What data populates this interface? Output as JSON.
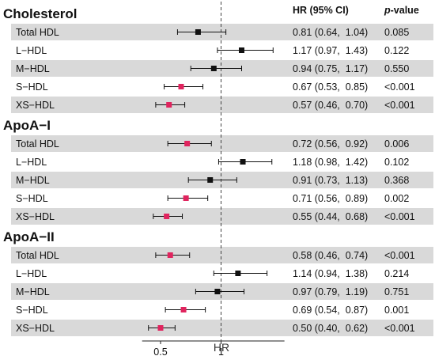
{
  "chart_data": {
    "type": "forest",
    "header": {
      "hr_label": "HR (95% CI)",
      "p_italic": "p",
      "p_rest": "-value"
    },
    "xlabel": "HR",
    "x_ticks": [
      "0.5",
      "1"
    ],
    "x_tick_values": [
      0.5,
      1
    ],
    "xlim": [
      0.4,
      1.55
    ],
    "reference_line": 1,
    "significant_color": "#e0245e",
    "nonsignificant_color": "#111111",
    "row_shade_color": "#d9d9d9",
    "groups": [
      {
        "title": "Cholesterol",
        "rows": [
          {
            "label": "Total HDL",
            "hr": 0.81,
            "lo": 0.64,
            "hi": 1.04,
            "ci_text": "0.81 (0.64,  1.04)",
            "p": "0.085",
            "significant": false
          },
          {
            "label": "L−HDL",
            "hr": 1.17,
            "lo": 0.97,
            "hi": 1.43,
            "ci_text": "1.17 (0.97,  1.43)",
            "p": "0.122",
            "significant": false
          },
          {
            "label": "M−HDL",
            "hr": 0.94,
            "lo": 0.75,
            "hi": 1.17,
            "ci_text": "0.94 (0.75,  1.17)",
            "p": "0.550",
            "significant": false
          },
          {
            "label": "S−HDL",
            "hr": 0.67,
            "lo": 0.53,
            "hi": 0.85,
            "ci_text": "0.67 (0.53,  0.85)",
            "p": "<0.001",
            "significant": true
          },
          {
            "label": "XS−HDL",
            "hr": 0.57,
            "lo": 0.46,
            "hi": 0.7,
            "ci_text": "0.57 (0.46,  0.70)",
            "p": "<0.001",
            "significant": true
          }
        ]
      },
      {
        "title": "ApoA−I",
        "rows": [
          {
            "label": "Total HDL",
            "hr": 0.72,
            "lo": 0.56,
            "hi": 0.92,
            "ci_text": "0.72 (0.56,  0.92)",
            "p": "0.006",
            "significant": true
          },
          {
            "label": "L−HDL",
            "hr": 1.18,
            "lo": 0.98,
            "hi": 1.42,
            "ci_text": "1.18 (0.98,  1.42)",
            "p": "0.102",
            "significant": false
          },
          {
            "label": "M−HDL",
            "hr": 0.91,
            "lo": 0.73,
            "hi": 1.13,
            "ci_text": "0.91 (0.73,  1.13)",
            "p": "0.368",
            "significant": false
          },
          {
            "label": "S−HDL",
            "hr": 0.71,
            "lo": 0.56,
            "hi": 0.89,
            "ci_text": "0.71 (0.56,  0.89)",
            "p": "0.002",
            "significant": true
          },
          {
            "label": "XS−HDL",
            "hr": 0.55,
            "lo": 0.44,
            "hi": 0.68,
            "ci_text": "0.55 (0.44,  0.68)",
            "p": "<0.001",
            "significant": true
          }
        ]
      },
      {
        "title": "ApoA−II",
        "rows": [
          {
            "label": "Total HDL",
            "hr": 0.58,
            "lo": 0.46,
            "hi": 0.74,
            "ci_text": "0.58 (0.46,  0.74)",
            "p": "<0.001",
            "significant": true
          },
          {
            "label": "L−HDL",
            "hr": 1.14,
            "lo": 0.94,
            "hi": 1.38,
            "ci_text": "1.14 (0.94,  1.38)",
            "p": "0.214",
            "significant": false
          },
          {
            "label": "M−HDL",
            "hr": 0.97,
            "lo": 0.79,
            "hi": 1.19,
            "ci_text": "0.97 (0.79,  1.19)",
            "p": "0.751",
            "significant": false
          },
          {
            "label": "S−HDL",
            "hr": 0.69,
            "lo": 0.54,
            "hi": 0.87,
            "ci_text": "0.69 (0.54,  0.87)",
            "p": "0.001",
            "significant": true
          },
          {
            "label": "XS−HDL",
            "hr": 0.5,
            "lo": 0.4,
            "hi": 0.62,
            "ci_text": "0.50 (0.40,  0.62)",
            "p": "<0.001",
            "significant": true
          }
        ]
      }
    ]
  }
}
